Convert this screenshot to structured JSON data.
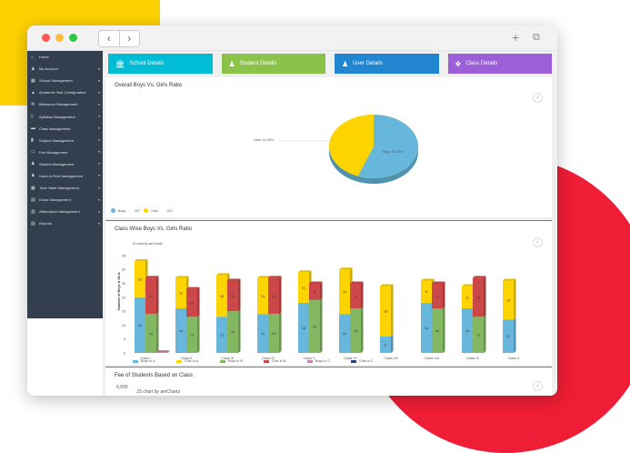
{
  "sidebar": {
    "items": [
      {
        "label": "Home",
        "icon": "home-icon",
        "caret": false
      },
      {
        "label": "My Account",
        "icon": "user-icon",
        "caret": true
      },
      {
        "label": "School Management",
        "icon": "school-icon",
        "caret": true
      },
      {
        "label": "Academic Year Configuration",
        "icon": "graduation-cap-icon",
        "caret": true
      },
      {
        "label": "Behaviour Management",
        "icon": "gear-icon",
        "caret": true
      },
      {
        "label": "Syllabus Management",
        "icon": "file-icon",
        "caret": true
      },
      {
        "label": "Class Management",
        "icon": "class-icon",
        "caret": true
      },
      {
        "label": "Subject Management",
        "icon": "book-icon",
        "caret": true
      },
      {
        "label": "Fee Management",
        "icon": "money-icon",
        "caret": true
      },
      {
        "label": "Student Management",
        "icon": "student-icon",
        "caret": true
      },
      {
        "label": "Users & Role Management",
        "icon": "users-icon",
        "caret": true
      },
      {
        "label": "Time Table Management",
        "icon": "calendar-icon",
        "caret": true
      },
      {
        "label": "Exam Management",
        "icon": "exam-icon",
        "caret": true
      },
      {
        "label": "Attendance Management",
        "icon": "attendance-icon",
        "caret": true
      },
      {
        "label": "Reports",
        "icon": "report-icon",
        "caret": true
      }
    ]
  },
  "cards": [
    {
      "label": "School Details",
      "color": "#00bcd4",
      "icon": "bank-icon"
    },
    {
      "label": "Student Details",
      "color": "#8bc34a",
      "icon": "user-icon"
    },
    {
      "label": "User Details",
      "color": "#2185d0",
      "icon": "user-icon"
    },
    {
      "label": "Class Details",
      "color": "#9c5fd8",
      "icon": "arrows-icon"
    }
  ],
  "pie": {
    "title": "Overall Boys Vs. Girls Ratio",
    "slices": [
      {
        "name": "Boys",
        "percent_label": "Boys: 55.74%",
        "value": 267,
        "color": "#67b7dc"
      },
      {
        "name": "Girls",
        "percent_label": "Girls: 44.26%",
        "value": 212,
        "color": "#fdd400"
      }
    ]
  },
  "chart_data": {
    "type": "bar",
    "title": "Class Wise Boys Vs. Girls Ratio",
    "credit": "JS chart by amCharts",
    "ylabel": "Number of Boys & Girls",
    "ylim": [
      0,
      35
    ],
    "yticks": [
      "0",
      "5",
      "10",
      "15",
      "20",
      "25",
      "30",
      "35"
    ],
    "categories": [
      "Class I",
      "Class II",
      "Class III",
      "Class IV",
      "Class V",
      "Class VI",
      "Class VII",
      "Class VIII",
      "Class IX",
      "Class X"
    ],
    "series": [
      {
        "name": "Boys In A",
        "color": "#67b7dc",
        "stack": "A",
        "values": [
          20,
          16,
          13,
          14,
          18,
          14,
          6,
          18,
          16,
          12
        ]
      },
      {
        "name": "Girls In A",
        "color": "#fdd400",
        "stack": "A",
        "values": [
          13,
          11,
          15,
          13,
          11,
          16,
          18,
          8,
          8,
          14
        ]
      },
      {
        "name": "Boys In B",
        "color": "#84b761",
        "stack": "B",
        "values": [
          14,
          13,
          15,
          14,
          19,
          16,
          null,
          16,
          13,
          null
        ]
      },
      {
        "name": "Girls In B",
        "color": "#cc4748",
        "stack": "B",
        "values": [
          13,
          10,
          11,
          13,
          6,
          9,
          null,
          9,
          14,
          null
        ]
      },
      {
        "name": "Boys In C",
        "color": "#cd82ad",
        "stack": "C",
        "values": [
          0.3,
          null,
          null,
          null,
          null,
          null,
          null,
          null,
          null,
          null
        ]
      },
      {
        "name": "Girls In C",
        "color": "#2f4074",
        "stack": "C",
        "values": [
          null,
          null,
          null,
          null,
          null,
          null,
          null,
          null,
          null,
          null
        ]
      }
    ]
  },
  "fee": {
    "title": "Fee of Students Based on Class",
    "first_tick": "6,000",
    "credit": "JS chart by amCharts"
  }
}
